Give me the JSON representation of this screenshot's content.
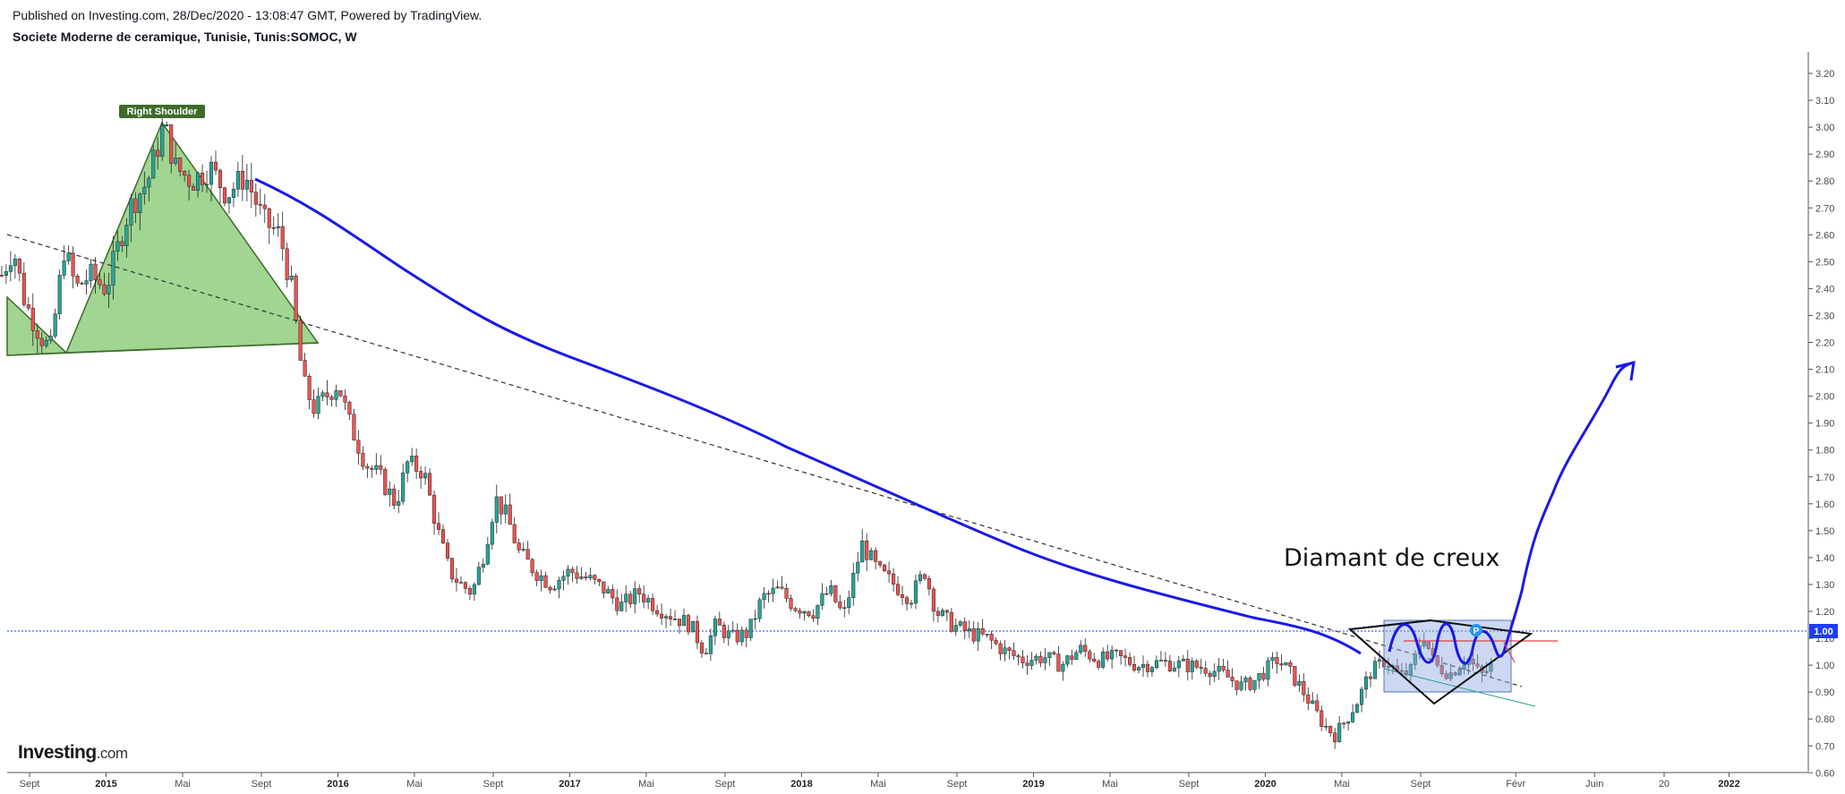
{
  "header": {
    "published": "Published on Investing.com, 28/Dec/2020 - 13:08:47 GMT, Powered by TradingView.",
    "symbol": "Societe Moderne de ceramique, Tunisie, Tunis:SOMOC, W"
  },
  "logo": {
    "brand": "Investing",
    "suffix": ".com"
  },
  "colors": {
    "up": "#26a69a",
    "down": "#ef5350",
    "trend_blue": "#1a1ae6",
    "pattern_green": "#8fce7f",
    "last_price": "#1e3cff",
    "box": "#8fa8e0"
  },
  "chart_data": {
    "type": "candlestick",
    "interval": "W",
    "price_axis": {
      "ticks": [
        "3.20",
        "3.10",
        "3.00",
        "2.90",
        "2.80",
        "2.70",
        "2.60",
        "2.50",
        "2.40",
        "2.30",
        "2.20",
        "2.10",
        "2.00",
        "1.90",
        "1.80",
        "1.70",
        "1.60",
        "1.50",
        "1.40",
        "1.30",
        "1.20",
        "1.10",
        "1.00",
        "0.90",
        "0.80",
        "0.70",
        "0.60"
      ],
      "range": [
        0.6,
        3.24
      ],
      "last_price": "1.00"
    },
    "time_axis": {
      "ticks": [
        {
          "label": "Sept",
          "t": 2014.67,
          "major": false
        },
        {
          "label": "2015",
          "t": 2015.0,
          "major": true
        },
        {
          "label": "Mai",
          "t": 2015.33,
          "major": false
        },
        {
          "label": "Sept",
          "t": 2015.67,
          "major": false
        },
        {
          "label": "2016",
          "t": 2016.0,
          "major": true
        },
        {
          "label": "Mai",
          "t": 2016.33,
          "major": false
        },
        {
          "label": "Sept",
          "t": 2016.67,
          "major": false
        },
        {
          "label": "2017",
          "t": 2017.0,
          "major": true
        },
        {
          "label": "Mai",
          "t": 2017.33,
          "major": false
        },
        {
          "label": "Sept",
          "t": 2017.67,
          "major": false
        },
        {
          "label": "2018",
          "t": 2018.0,
          "major": true
        },
        {
          "label": "Mai",
          "t": 2018.33,
          "major": false
        },
        {
          "label": "Sept",
          "t": 2018.67,
          "major": false
        },
        {
          "label": "2019",
          "t": 2019.0,
          "major": true
        },
        {
          "label": "Mai",
          "t": 2019.33,
          "major": false
        },
        {
          "label": "Sept",
          "t": 2019.67,
          "major": false
        },
        {
          "label": "2020",
          "t": 2020.0,
          "major": true
        },
        {
          "label": "Mai",
          "t": 2020.33,
          "major": false
        },
        {
          "label": "Sept",
          "t": 2020.67,
          "major": false
        },
        {
          "label": "Févr",
          "t": 2021.08,
          "major": false
        },
        {
          "label": "Juin",
          "t": 2021.42,
          "major": false
        },
        {
          "label": "20",
          "t": 2021.72,
          "major": false
        },
        {
          "label": "2022",
          "t": 2022.0,
          "major": true
        }
      ]
    },
    "price_path": [
      [
        2014.55,
        2.45
      ],
      [
        2014.6,
        2.55
      ],
      [
        2014.65,
        2.35
      ],
      [
        2014.72,
        2.22
      ],
      [
        2014.76,
        2.17
      ],
      [
        2014.82,
        2.55
      ],
      [
        2014.87,
        2.4
      ],
      [
        2014.93,
        2.45
      ],
      [
        2015.0,
        2.4
      ],
      [
        2015.05,
        2.55
      ],
      [
        2015.1,
        2.7
      ],
      [
        2015.18,
        2.8
      ],
      [
        2015.25,
        3.01
      ],
      [
        2015.3,
        2.85
      ],
      [
        2015.37,
        2.8
      ],
      [
        2015.45,
        2.85
      ],
      [
        2015.52,
        2.75
      ],
      [
        2015.6,
        2.82
      ],
      [
        2015.68,
        2.65
      ],
      [
        2015.75,
        2.6
      ],
      [
        2015.8,
        2.4
      ],
      [
        2015.85,
        2.05
      ],
      [
        2015.9,
        1.95
      ],
      [
        2015.95,
        2.0
      ],
      [
        2016.0,
        2.05
      ],
      [
        2016.05,
        1.9
      ],
      [
        2016.12,
        1.75
      ],
      [
        2016.18,
        1.7
      ],
      [
        2016.25,
        1.6
      ],
      [
        2016.3,
        1.75
      ],
      [
        2016.37,
        1.72
      ],
      [
        2016.43,
        1.5
      ],
      [
        2016.48,
        1.35
      ],
      [
        2016.53,
        1.3
      ],
      [
        2016.58,
        1.27
      ],
      [
        2016.63,
        1.42
      ],
      [
        2016.68,
        1.62
      ],
      [
        2016.73,
        1.55
      ],
      [
        2016.78,
        1.42
      ],
      [
        2016.85,
        1.35
      ],
      [
        2016.92,
        1.3
      ],
      [
        2017.0,
        1.35
      ],
      [
        2017.08,
        1.32
      ],
      [
        2017.15,
        1.28
      ],
      [
        2017.22,
        1.22
      ],
      [
        2017.3,
        1.27
      ],
      [
        2017.37,
        1.22
      ],
      [
        2017.45,
        1.18
      ],
      [
        2017.52,
        1.15
      ],
      [
        2017.58,
        1.05
      ],
      [
        2017.63,
        1.15
      ],
      [
        2017.7,
        1.1
      ],
      [
        2017.77,
        1.12
      ],
      [
        2017.83,
        1.25
      ],
      [
        2017.9,
        1.28
      ],
      [
        2017.97,
        1.22
      ],
      [
        2018.05,
        1.2
      ],
      [
        2018.12,
        1.28
      ],
      [
        2018.18,
        1.18
      ],
      [
        2018.26,
        1.45
      ],
      [
        2018.33,
        1.35
      ],
      [
        2018.4,
        1.3
      ],
      [
        2018.47,
        1.25
      ],
      [
        2018.53,
        1.35
      ],
      [
        2018.58,
        1.2
      ],
      [
        2018.65,
        1.15
      ],
      [
        2018.72,
        1.12
      ],
      [
        2018.8,
        1.1
      ],
      [
        2018.88,
        1.05
      ],
      [
        2018.95,
        1.02
      ],
      [
        2019.05,
        1.03
      ],
      [
        2019.12,
        1.0
      ],
      [
        2019.2,
        1.06
      ],
      [
        2019.28,
        1.02
      ],
      [
        2019.36,
        1.03
      ],
      [
        2019.45,
        1.0
      ],
      [
        2019.55,
        1.01
      ],
      [
        2019.65,
        1.0
      ],
      [
        2019.75,
        0.99
      ],
      [
        2019.83,
        0.96
      ],
      [
        2019.9,
        0.92
      ],
      [
        2019.95,
        0.94
      ],
      [
        2020.0,
        0.98
      ],
      [
        2020.05,
        1.02
      ],
      [
        2020.1,
        0.98
      ],
      [
        2020.15,
        0.92
      ],
      [
        2020.2,
        0.85
      ],
      [
        2020.25,
        0.78
      ],
      [
        2020.3,
        0.74
      ],
      [
        2020.35,
        0.8
      ],
      [
        2020.4,
        0.87
      ],
      [
        2020.45,
        0.97
      ],
      [
        2020.52,
        1.02
      ],
      [
        2020.58,
        0.96
      ],
      [
        2020.63,
        0.98
      ],
      [
        2020.68,
        1.12
      ],
      [
        2020.73,
        1.0
      ],
      [
        2020.8,
        0.97
      ],
      [
        2020.87,
        1.03
      ],
      [
        2020.93,
        0.96
      ],
      [
        2020.98,
        1.0
      ]
    ],
    "annotations": [
      {
        "type": "label",
        "text": "Right Shoulder"
      },
      {
        "type": "text",
        "text": "Diamant de creux"
      },
      {
        "type": "marker",
        "text": "P"
      }
    ]
  }
}
